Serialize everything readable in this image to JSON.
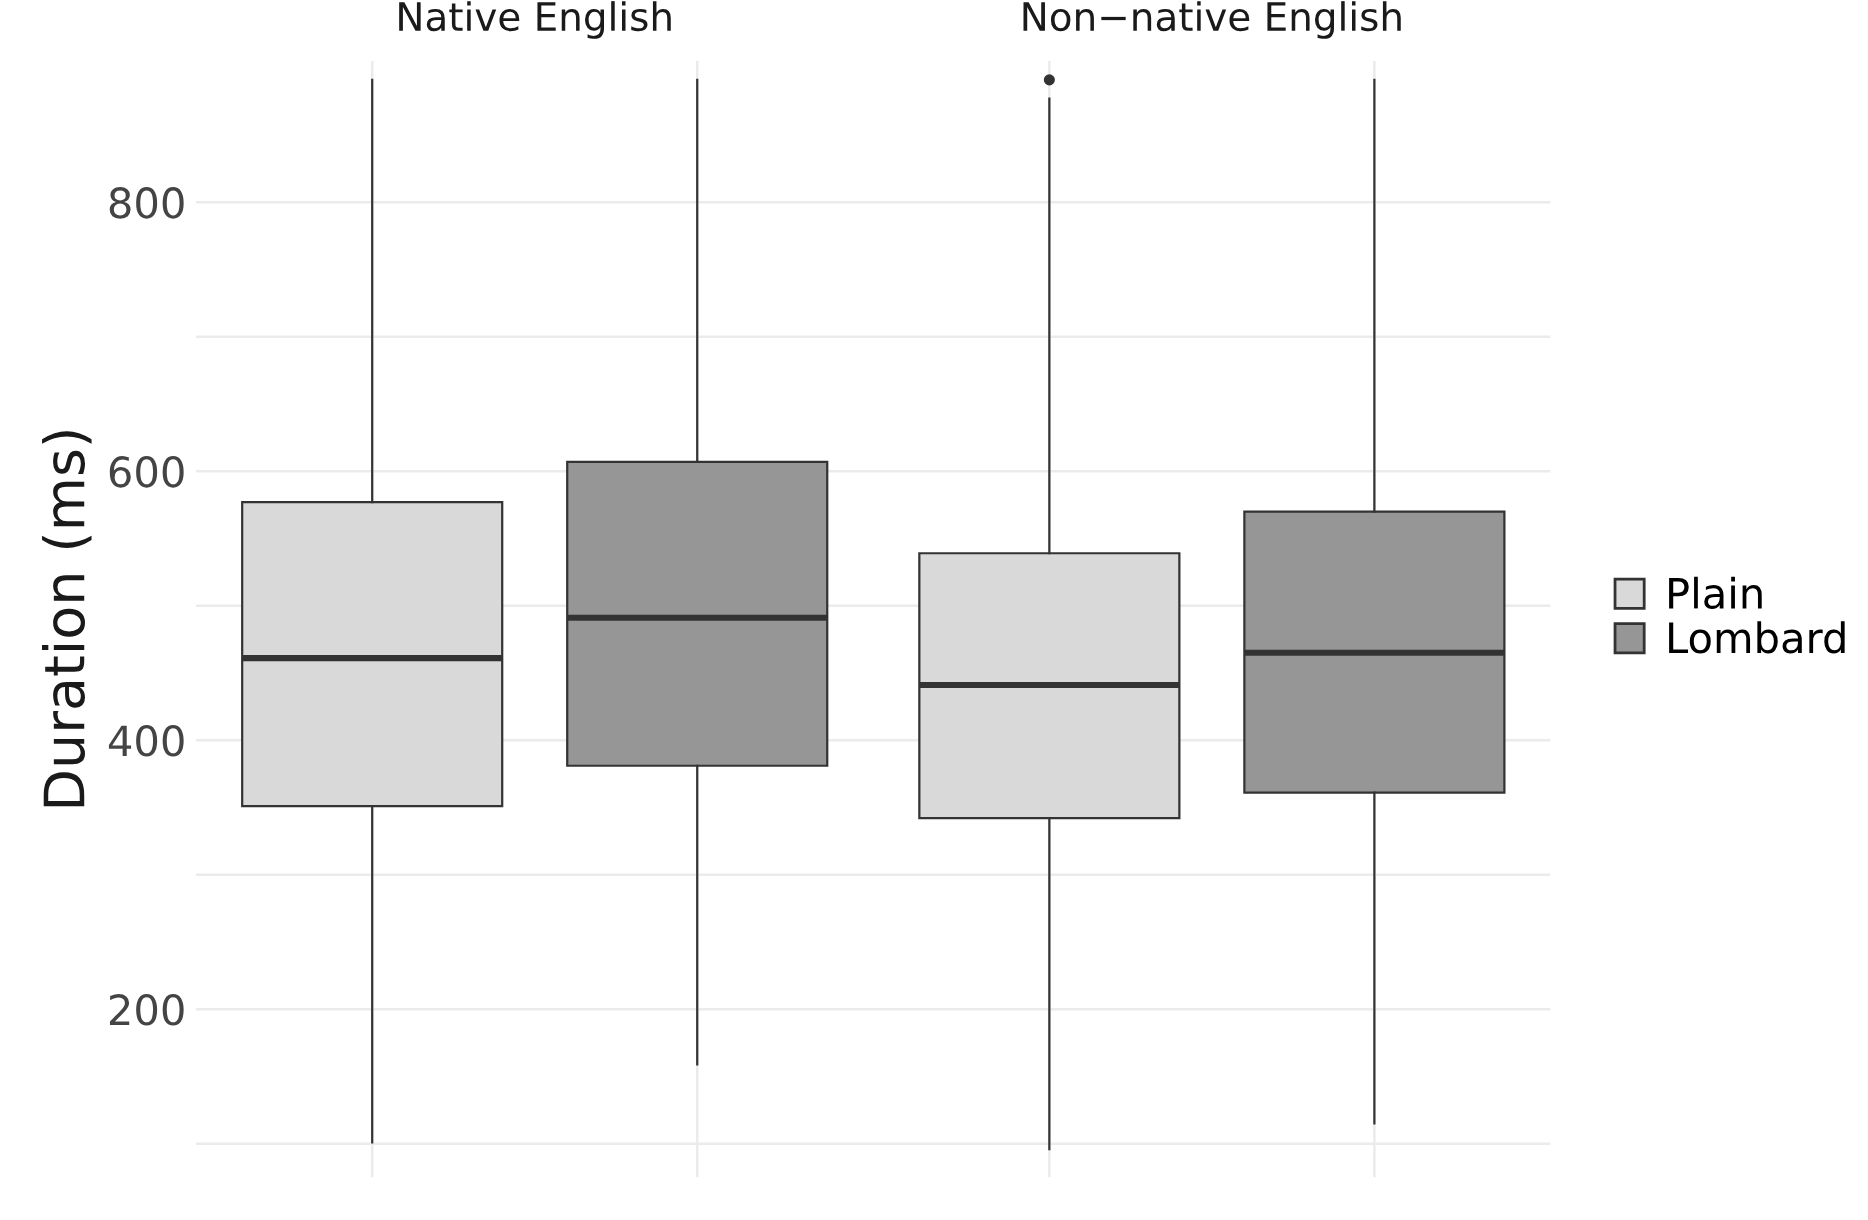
{
  "chart_data": {
    "type": "box",
    "ylabel": "Duration (ms)",
    "categories": [
      "Native English",
      "Non−native English"
    ],
    "ylim": [
      75,
      905
    ],
    "yticks": [
      {
        "value": 100,
        "label": null
      },
      200,
      {
        "value": 300,
        "label": null
      },
      400,
      {
        "value": 500,
        "label": null
      },
      600,
      {
        "value": 700,
        "label": null
      },
      800
    ],
    "grid": true,
    "legend": "right",
    "series": [
      {
        "name": "Plain",
        "color": "#d9d9d9",
        "boxes": [
          {
            "low": 101,
            "q1": 351,
            "median": 461,
            "q3": 577,
            "high": 891
          },
          {
            "low": 96,
            "q1": 342,
            "median": 441,
            "q3": 539,
            "high": 877,
            "outliers": [
              891
            ]
          }
        ]
      },
      {
        "name": "Lombard",
        "color": "#969696",
        "boxes": [
          {
            "low": 159,
            "q1": 381,
            "median": 491,
            "q3": 607,
            "high": 891
          },
          {
            "low": 115,
            "q1": 361,
            "median": 465,
            "q3": 570,
            "high": 891
          }
        ]
      }
    ]
  }
}
